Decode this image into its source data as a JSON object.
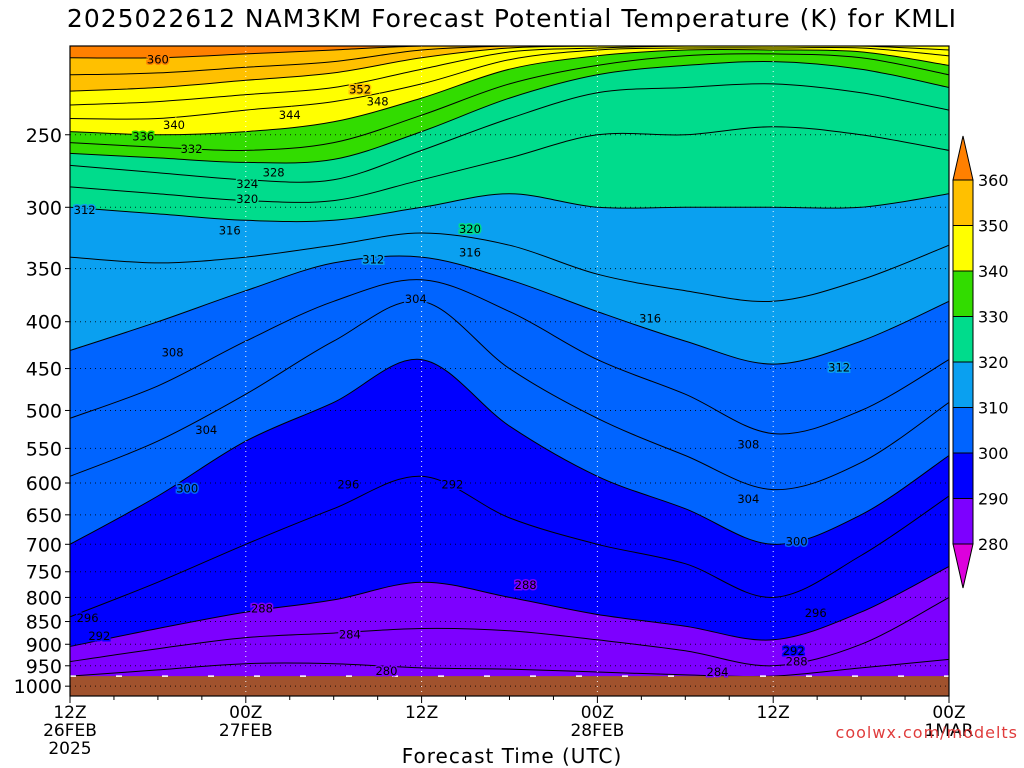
{
  "chart_data": {
    "type": "heatmap",
    "title": "2025022612 NAM3KM Forecast Potential Temperature (K) for KMLI",
    "xlabel": "Forecast Time (UTC)",
    "ylabel": "",
    "y_scale": "log",
    "y_axis_reversed": true,
    "ylim": [
      1000,
      200
    ],
    "y_ticks": [
      250,
      300,
      350,
      400,
      450,
      500,
      550,
      600,
      650,
      700,
      750,
      800,
      850,
      900,
      950,
      1000
    ],
    "x_ticks": [
      {
        "hour": 0,
        "lines": [
          "12Z",
          "26FEB",
          "2025"
        ]
      },
      {
        "hour": 12,
        "lines": [
          "00Z",
          "27FEB"
        ]
      },
      {
        "hour": 24,
        "lines": [
          "12Z",
          ""
        ]
      },
      {
        "hour": 36,
        "lines": [
          "00Z",
          "28FEB"
        ]
      },
      {
        "hour": 48,
        "lines": [
          "12Z",
          ""
        ]
      },
      {
        "hour": 60,
        "lines": [
          "00Z",
          "1MAR"
        ]
      }
    ],
    "grid": true,
    "colorbar": {
      "levels": [
        280,
        290,
        300,
        310,
        320,
        330,
        340,
        350,
        360
      ],
      "colors": [
        "#dc00dc",
        "#7d00ff",
        "#0000ff",
        "#0064ff",
        "#0aa0f0",
        "#00dc8c",
        "#32dc00",
        "#ffff00",
        "#ffc000",
        "#ff8000"
      ],
      "location": "right",
      "extend": "both"
    },
    "hours": [
      0,
      6,
      12,
      18,
      24,
      30,
      36,
      42,
      48,
      54,
      60
    ],
    "isentrope_pressures": [
      {
        "theta": 284,
        "p": [
          975,
          960,
          945,
          945,
          955,
          958,
          965,
          972,
          975,
          955,
          935
        ]
      },
      {
        "theta": 288,
        "p": [
          940,
          910,
          885,
          875,
          865,
          870,
          890,
          915,
          950,
          900,
          800
        ]
      },
      {
        "theta": 292,
        "p": [
          905,
          865,
          830,
          805,
          770,
          800,
          835,
          860,
          890,
          830,
          740
        ]
      },
      {
        "theta": 296,
        "p": [
          840,
          770,
          700,
          640,
          590,
          655,
          700,
          735,
          800,
          720,
          620
        ]
      },
      {
        "theta": 300,
        "p": [
          700,
          620,
          540,
          490,
          440,
          520,
          590,
          640,
          700,
          650,
          560
        ]
      },
      {
        "theta": 304,
        "p": [
          590,
          540,
          480,
          420,
          380,
          450,
          510,
          560,
          610,
          570,
          490
        ]
      },
      {
        "theta": 308,
        "p": [
          510,
          470,
          420,
          380,
          360,
          390,
          440,
          480,
          530,
          500,
          440
        ]
      },
      {
        "theta": 312,
        "p": [
          430,
          400,
          370,
          345,
          340,
          360,
          390,
          420,
          445,
          420,
          380
        ]
      },
      {
        "theta": 316,
        "p": [
          340,
          345,
          340,
          330,
          320,
          330,
          355,
          370,
          380,
          360,
          330
        ]
      },
      {
        "theta": 320,
        "p": [
          300,
          305,
          310,
          310,
          300,
          290,
          300,
          300,
          300,
          300,
          290
        ]
      },
      {
        "theta": 324,
        "p": [
          285,
          290,
          295,
          295,
          280,
          265,
          250,
          250,
          245,
          250,
          260
        ]
      },
      {
        "theta": 328,
        "p": [
          270,
          275,
          280,
          280,
          260,
          240,
          225,
          222,
          220,
          225,
          235
        ]
      },
      {
        "theta": 332,
        "p": [
          262,
          265,
          268,
          266,
          248,
          228,
          215,
          210,
          208,
          212,
          222
        ]
      },
      {
        "theta": 336,
        "p": [
          255,
          258,
          260,
          255,
          238,
          220,
          210,
          205,
          204,
          206,
          215
        ]
      },
      {
        "theta": 340,
        "p": [
          248,
          250,
          248,
          242,
          228,
          212,
          205,
          202,
          202,
          203,
          210
        ]
      },
      {
        "theta": 344,
        "p": [
          240,
          240,
          235,
          230,
          220,
          207,
          202,
          201,
          201,
          201,
          205
        ]
      },
      {
        "theta": 348,
        "p": [
          232,
          230,
          226,
          222,
          212,
          203,
          201,
          200,
          200,
          200,
          202
        ]
      },
      {
        "theta": 352,
        "p": [
          224,
          222,
          218,
          214,
          206,
          201,
          200,
          200,
          200,
          200,
          200
        ]
      },
      {
        "theta": 356,
        "p": [
          215,
          214,
          211,
          208,
          202,
          200,
          200,
          200,
          200,
          200,
          200
        ]
      },
      {
        "theta": 360,
        "p": [
          206,
          206,
          204,
          202,
          200,
          200,
          200,
          200,
          200,
          200,
          200
        ]
      }
    ],
    "contour_labels": [
      {
        "text": "360",
        "hour": 6.0,
        "p": 207
      },
      {
        "text": "352",
        "hour": 19.8,
        "p": 223
      },
      {
        "text": "348",
        "hour": 21.0,
        "p": 230
      },
      {
        "text": "344",
        "hour": 15.0,
        "p": 238
      },
      {
        "text": "340",
        "hour": 7.1,
        "p": 244
      },
      {
        "text": "336",
        "hour": 5.0,
        "p": 251
      },
      {
        "text": "332",
        "hour": 8.3,
        "p": 259
      },
      {
        "text": "328",
        "hour": 13.9,
        "p": 275
      },
      {
        "text": "324",
        "hour": 12.1,
        "p": 283
      },
      {
        "text": "320",
        "hour": 12.1,
        "p": 294
      },
      {
        "text": "316",
        "hour": 10.9,
        "p": 318
      },
      {
        "text": "312",
        "hour": 1.0,
        "p": 302
      },
      {
        "text": "312",
        "hour": 20.7,
        "p": 342
      },
      {
        "text": "316",
        "hour": 27.3,
        "p": 336
      },
      {
        "text": "320",
        "hour": 27.3,
        "p": 317
      },
      {
        "text": "304",
        "hour": 23.6,
        "p": 378
      },
      {
        "text": "316",
        "hour": 39.6,
        "p": 397
      },
      {
        "text": "308",
        "hour": 7.0,
        "p": 432
      },
      {
        "text": "312",
        "hour": 52.5,
        "p": 449
      },
      {
        "text": "304",
        "hour": 9.3,
        "p": 525
      },
      {
        "text": "308",
        "hour": 46.3,
        "p": 545
      },
      {
        "text": "300",
        "hour": 8.0,
        "p": 608
      },
      {
        "text": "296",
        "hour": 19.0,
        "p": 602
      },
      {
        "text": "292",
        "hour": 26.1,
        "p": 602
      },
      {
        "text": "304",
        "hour": 46.3,
        "p": 625
      },
      {
        "text": "300",
        "hour": 49.6,
        "p": 695
      },
      {
        "text": "288",
        "hour": 31.1,
        "p": 775
      },
      {
        "text": "288",
        "hour": 13.1,
        "p": 823
      },
      {
        "text": "296",
        "hour": 50.9,
        "p": 832
      },
      {
        "text": "296",
        "hour": 1.2,
        "p": 842
      },
      {
        "text": "284",
        "hour": 19.1,
        "p": 878
      },
      {
        "text": "292",
        "hour": 2.0,
        "p": 882
      },
      {
        "text": "292",
        "hour": 49.4,
        "p": 915
      },
      {
        "text": "288",
        "hour": 49.6,
        "p": 940
      },
      {
        "text": "280",
        "hour": 21.6,
        "p": 962
      },
      {
        "text": "284",
        "hour": 44.2,
        "p": 965
      }
    ],
    "ground_color": "#a0522d",
    "ground_pressure": 975
  },
  "labels": {
    "title": "2025022612 NAM3KM Forecast Potential Temperature (K) for KMLI",
    "xlabel": "Forecast Time (UTC)",
    "credit_line1": "coolwx.com/modelts"
  }
}
